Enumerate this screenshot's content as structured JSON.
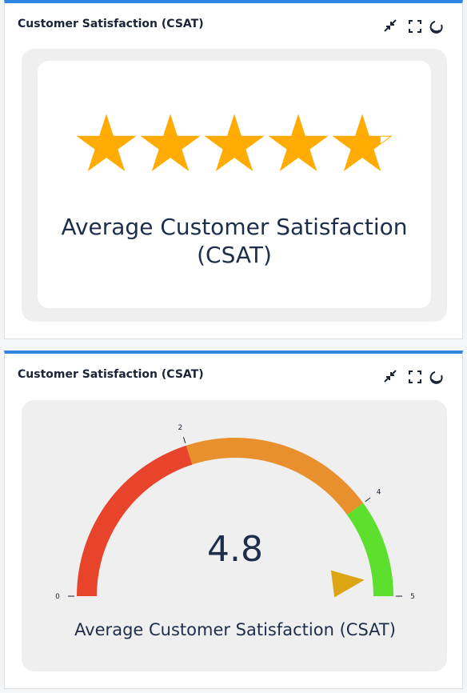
{
  "widgets": [
    {
      "title": "Customer Satisfaction (CSAT)"
    },
    {
      "title": "Customer Satisfaction (CSAT)"
    }
  ],
  "chart_data": [
    {
      "type": "rating",
      "value": 4.8,
      "max": 5,
      "color": "#ffab00",
      "label": "Average Customer Satisfaction (CSAT)"
    },
    {
      "type": "gauge",
      "value": 4.8,
      "range": [
        0,
        5
      ],
      "ticks": [
        0,
        2,
        4,
        5
      ],
      "bands": [
        {
          "from": 0,
          "to": 2,
          "color": "#e8432b"
        },
        {
          "from": 2,
          "to": 4,
          "color": "#e8902e"
        },
        {
          "from": 4,
          "to": 5,
          "color": "#5ddf2e"
        }
      ],
      "pointer_color": "#dca514",
      "label": "Average Customer Satisfaction (CSAT)"
    }
  ]
}
